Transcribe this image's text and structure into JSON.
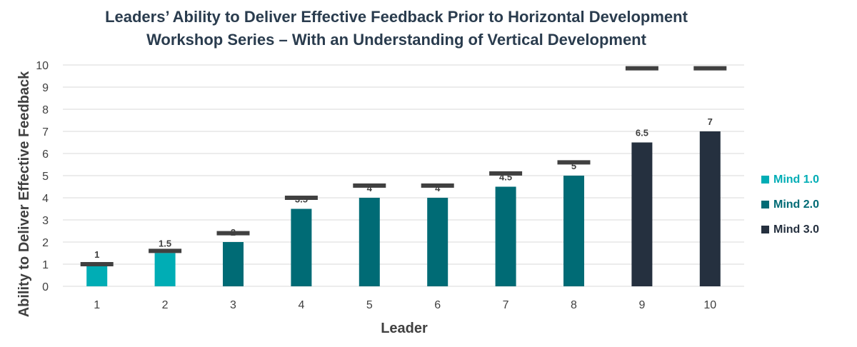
{
  "chart_data": {
    "type": "bar",
    "title_line1": "Leaders’ Ability to Deliver Effective Feedback Prior to Horizontal Development",
    "title_line2": "Workshop Series – With an Understanding of Vertical Development",
    "xlabel": "Leader",
    "ylabel": "Ability to Deliver Effective Feedback",
    "ylim": [
      0,
      10
    ],
    "yticks": [
      "0",
      "1",
      "2",
      "3",
      "4",
      "5",
      "6",
      "7",
      "8",
      "9",
      "10"
    ],
    "categories": [
      "1",
      "2",
      "3",
      "4",
      "5",
      "6",
      "7",
      "8",
      "9",
      "10"
    ],
    "values": [
      1,
      1.5,
      2,
      3.5,
      4,
      4,
      4.5,
      5,
      6.5,
      7
    ],
    "value_labels": [
      "1",
      "1.5",
      "2",
      "3.5",
      "4",
      "4",
      "4.5",
      "5",
      "6.5",
      "7"
    ],
    "groups": [
      "Mind 1.0",
      "Mind 1.0",
      "Mind 2.0",
      "Mind 2.0",
      "Mind 2.0",
      "Mind 2.0",
      "Mind 2.0",
      "Mind 2.0",
      "Mind 3.0",
      "Mind 3.0"
    ],
    "markers": [
      1,
      1.6,
      2.4,
      4,
      4.55,
      4.55,
      5.1,
      5.6,
      9.85,
      9.85
    ],
    "grid": true,
    "legend_position": "right",
    "legend": [
      {
        "name": "Mind 1.0",
        "color": "#00adb5",
        "label_color": "#00adb5"
      },
      {
        "name": "Mind 2.0",
        "color": "#006b75",
        "label_color": "#006b75"
      },
      {
        "name": "Mind 3.0",
        "color": "#25303f",
        "label_color": "#25303f"
      }
    ],
    "marker_color": "#404040",
    "text_color": "#404040"
  }
}
